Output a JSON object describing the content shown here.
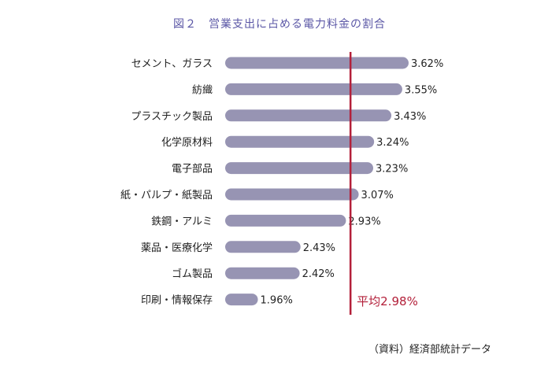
{
  "chart_data": {
    "type": "bar",
    "orientation": "horizontal",
    "title": "図２　営業支出に占める電力料金の割合",
    "categories": [
      "セメント、ガラス",
      "紡織",
      "プラスチック製品",
      "化学原材料",
      "電子部品",
      "紙・パルプ・紙製品",
      "鉄鋼・アルミ",
      "薬品・医療化学",
      "ゴム製品",
      "印刷・情報保存"
    ],
    "values": [
      3.62,
      3.55,
      3.43,
      3.24,
      3.23,
      3.07,
      2.93,
      2.43,
      2.42,
      1.96
    ],
    "value_labels": [
      "3.62%",
      "3.55%",
      "3.43%",
      "3.24%",
      "3.23%",
      "3.07%",
      "2.93%",
      "2.43%",
      "2.42%",
      "1.96%"
    ],
    "average": {
      "value": 2.98,
      "label": "平均2.98%"
    },
    "xlim": [
      1.6,
      3.62
    ],
    "grid": false,
    "bar_color": "#9794b3",
    "average_line_color": "#b3203a"
  },
  "source": "（資料）経済部統計データ"
}
